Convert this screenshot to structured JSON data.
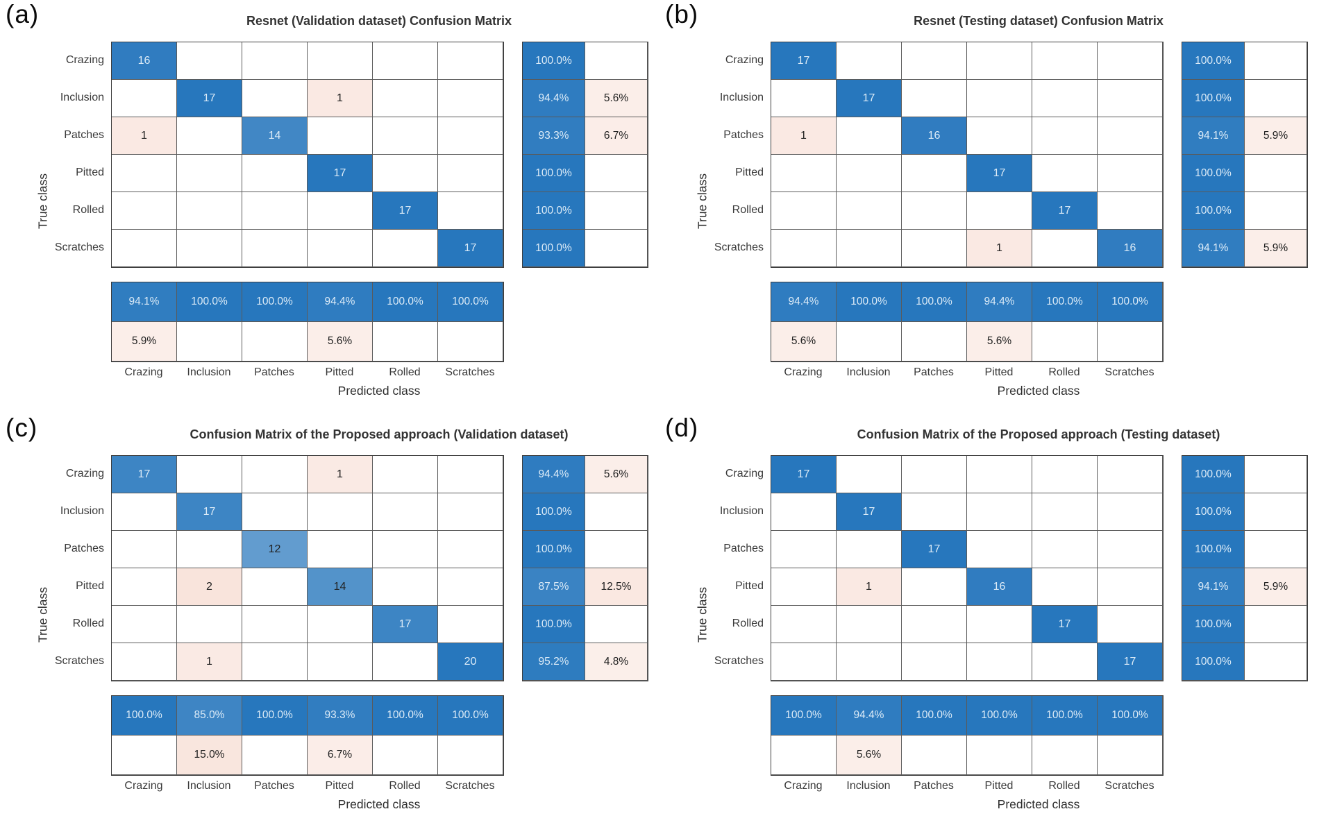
{
  "figure": {
    "x_label": "Predicted class",
    "y_label": "True class"
  },
  "colors": {
    "diagonal_blue": "#2777bd",
    "off_diagonal_salmon": "#dd6b3f",
    "summary_blue": "#2777bd",
    "summary_salmon": "#dd6b3f",
    "grid_line": "#5a5a5a",
    "outer_border": "#3c3c3c",
    "light_text": "#dcebf7",
    "dark_text": "#212121",
    "tick_text": "#3a3a3a",
    "title_text": "#333333"
  },
  "chart_data": [
    {
      "type": "heatmap",
      "panel_label": "(a)",
      "title": "Resnet (Validation dataset) Confusion Matrix",
      "xlabel": "Predicted class",
      "ylabel": "True class",
      "classes": [
        "Crazing",
        "Inclusion",
        "Patches",
        "Pitted",
        "Rolled",
        "Scratches"
      ],
      "matrix": [
        [
          16,
          0,
          0,
          0,
          0,
          0
        ],
        [
          0,
          17,
          0,
          1,
          0,
          0
        ],
        [
          1,
          0,
          14,
          0,
          0,
          0
        ],
        [
          0,
          0,
          0,
          17,
          0,
          0
        ],
        [
          0,
          0,
          0,
          0,
          17,
          0
        ],
        [
          0,
          0,
          0,
          0,
          0,
          17
        ]
      ],
      "row_summary": [
        [
          "100.0%",
          ""
        ],
        [
          "94.4%",
          "5.6%"
        ],
        [
          "93.3%",
          "6.7%"
        ],
        [
          "100.0%",
          ""
        ],
        [
          "100.0%",
          ""
        ],
        [
          "100.0%",
          ""
        ]
      ],
      "col_summary": [
        [
          "94.1%",
          "100.0%",
          "100.0%",
          "94.4%",
          "100.0%",
          "100.0%"
        ],
        [
          "5.9%",
          "",
          "",
          "5.6%",
          "",
          ""
        ]
      ]
    },
    {
      "type": "heatmap",
      "panel_label": "(b)",
      "title": "Resnet (Testing dataset) Confusion Matrix",
      "xlabel": "Predicted class",
      "ylabel": "True class",
      "classes": [
        "Crazing",
        "Inclusion",
        "Patches",
        "Pitted",
        "Rolled",
        "Scratches"
      ],
      "matrix": [
        [
          17,
          0,
          0,
          0,
          0,
          0
        ],
        [
          0,
          17,
          0,
          0,
          0,
          0
        ],
        [
          1,
          0,
          16,
          0,
          0,
          0
        ],
        [
          0,
          0,
          0,
          17,
          0,
          0
        ],
        [
          0,
          0,
          0,
          0,
          17,
          0
        ],
        [
          0,
          0,
          0,
          1,
          0,
          16
        ]
      ],
      "row_summary": [
        [
          "100.0%",
          ""
        ],
        [
          "100.0%",
          ""
        ],
        [
          "94.1%",
          "5.9%"
        ],
        [
          "100.0%",
          ""
        ],
        [
          "100.0%",
          ""
        ],
        [
          "94.1%",
          "5.9%"
        ]
      ],
      "col_summary": [
        [
          "94.4%",
          "100.0%",
          "100.0%",
          "94.4%",
          "100.0%",
          "100.0%"
        ],
        [
          "5.6%",
          "",
          "",
          "5.6%",
          "",
          ""
        ]
      ]
    },
    {
      "type": "heatmap",
      "panel_label": "(c)",
      "title": "Confusion Matrix of the Proposed approach (Validation dataset)",
      "xlabel": "Predicted class",
      "ylabel": "True class",
      "classes": [
        "Crazing",
        "Inclusion",
        "Patches",
        "Pitted",
        "Rolled",
        "Scratches"
      ],
      "matrix": [
        [
          17,
          0,
          0,
          1,
          0,
          0
        ],
        [
          0,
          17,
          0,
          0,
          0,
          0
        ],
        [
          0,
          0,
          12,
          0,
          0,
          0
        ],
        [
          0,
          2,
          0,
          14,
          0,
          0
        ],
        [
          0,
          0,
          0,
          0,
          17,
          0
        ],
        [
          0,
          1,
          0,
          0,
          0,
          20
        ]
      ],
      "row_summary": [
        [
          "94.4%",
          "5.6%"
        ],
        [
          "100.0%",
          ""
        ],
        [
          "100.0%",
          ""
        ],
        [
          "87.5%",
          "12.5%"
        ],
        [
          "100.0%",
          ""
        ],
        [
          "95.2%",
          "4.8%"
        ]
      ],
      "col_summary": [
        [
          "100.0%",
          "85.0%",
          "100.0%",
          "93.3%",
          "100.0%",
          "100.0%"
        ],
        [
          "",
          "15.0%",
          "",
          "6.7%",
          "",
          ""
        ]
      ]
    },
    {
      "type": "heatmap",
      "panel_label": "(d)",
      "title": "Confusion Matrix of the Proposed approach (Testing dataset)",
      "xlabel": "Predicted class",
      "ylabel": "True class",
      "classes": [
        "Crazing",
        "Inclusion",
        "Patches",
        "Pitted",
        "Rolled",
        "Scratches"
      ],
      "matrix": [
        [
          17,
          0,
          0,
          0,
          0,
          0
        ],
        [
          0,
          17,
          0,
          0,
          0,
          0
        ],
        [
          0,
          0,
          17,
          0,
          0,
          0
        ],
        [
          0,
          1,
          0,
          16,
          0,
          0
        ],
        [
          0,
          0,
          0,
          0,
          17,
          0
        ],
        [
          0,
          0,
          0,
          0,
          0,
          17
        ]
      ],
      "row_summary": [
        [
          "100.0%",
          ""
        ],
        [
          "100.0%",
          ""
        ],
        [
          "100.0%",
          ""
        ],
        [
          "94.1%",
          "5.9%"
        ],
        [
          "100.0%",
          ""
        ],
        [
          "100.0%",
          ""
        ]
      ],
      "col_summary": [
        [
          "100.0%",
          "94.4%",
          "100.0%",
          "100.0%",
          "100.0%",
          "100.0%"
        ],
        [
          "",
          "5.6%",
          "",
          "",
          "",
          ""
        ]
      ]
    }
  ]
}
